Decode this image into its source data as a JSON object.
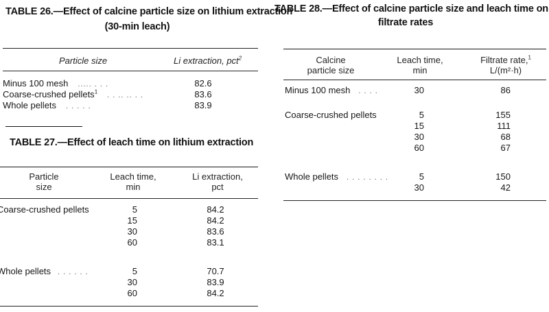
{
  "table26": {
    "title_line1": "TABLE 26.—Effect of calcine particle size on lithium extraction",
    "title_line2": "(30-min leach)",
    "col1_header": "Particle size",
    "col2_header": "Li extraction, pct",
    "col2_header_sup": "2",
    "rows": [
      {
        "size": "Minus 100 mesh",
        "size_sup": "",
        "dots": ".....         . . .",
        "value": "82.6"
      },
      {
        "size": "Coarse-crushed pellets",
        "size_sup": "1",
        "dots": ". . .. ..  . .",
        "value": "83.6"
      },
      {
        "size": "Whole pellets",
        "size_sup": "",
        "dots": ".       . .  . .",
        "value": "83.9"
      }
    ]
  },
  "table27": {
    "title": "TABLE 27.—Effect of leach time on lithium extraction",
    "col1_header_l1": "Particle",
    "col1_header_l2": "size",
    "col2_header_l1": "Leach time,",
    "col2_header_l2": "min",
    "col3_header_l1": "Li extraction,",
    "col3_header_l2": "pct",
    "groups": [
      {
        "label": "Coarse-crushed pellets",
        "dots": "",
        "times": [
          "5",
          "15",
          "30",
          "60"
        ],
        "values": [
          "84.2",
          "84.2",
          "83.6",
          "83.1"
        ]
      },
      {
        "label": "Whole pellets",
        "dots": ". . . . .  .",
        "times": [
          "5",
          "30",
          "60"
        ],
        "values": [
          "70.7",
          "83.9",
          "84.2"
        ]
      }
    ]
  },
  "table28": {
    "title_line1": "TABLE 28.—Effect of calcine particle size and leach time on",
    "title_line2": "filtrate rates",
    "col1_header_l1": "Calcine",
    "col1_header_l2": "particle size",
    "col2_header_l1": "Leach time,",
    "col2_header_l2": "min",
    "col3_header_l1": "Filtrate rate,",
    "col3_header_l1_sup": "1",
    "col3_header_l2": "L/(m²·h)",
    "groups": [
      {
        "label": "Minus 100 mesh",
        "dots": ". .   . .",
        "times": [
          "30"
        ],
        "values": [
          "86"
        ]
      },
      {
        "label": "Coarse-crushed pellets",
        "dots": "",
        "times": [
          "5",
          "15",
          "30",
          "60"
        ],
        "values": [
          "155",
          "111",
          "68",
          "67"
        ]
      },
      {
        "label": "Whole pellets",
        "dots": ". . .    . . . . .",
        "times": [
          "5",
          "30"
        ],
        "values": [
          "150",
          "42"
        ]
      }
    ]
  }
}
